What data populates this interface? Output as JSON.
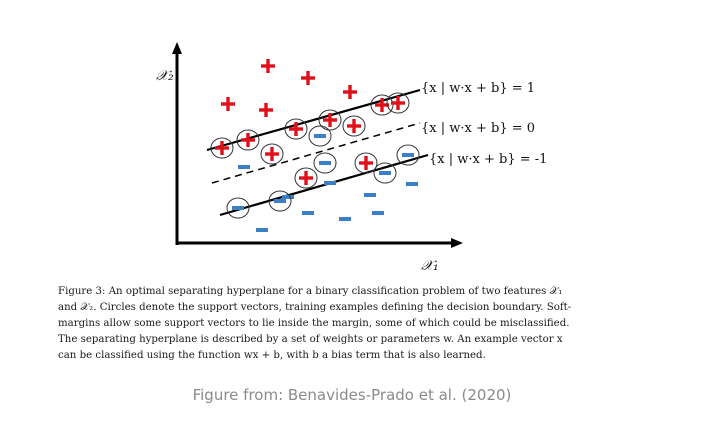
{
  "diagram": {
    "axis_x_label": "𝒳₁",
    "axis_y_label": "𝒳₂",
    "line_upper_label": "{x | w·x + b} = 1",
    "line_middle_label": "{x | w·x + b} = 0",
    "line_lower_label": "{x | w·x + b} = -1",
    "plus_color": "#e0101a",
    "minus_color": "#3b7fc9",
    "line_color": "#000000"
  },
  "caption": {
    "line1": "Figure 3: An optimal separating hyperplane for a binary classification problem of two features 𝒳₁",
    "line2": "and 𝒳₂. Circles denote the support vectors, training examples defining the decision boundary. Soft-",
    "line3": "margins allow some support vectors to lie inside the margin, some of which could be misclassified.",
    "line4": "The separating hyperplane is described by a set of weights or parameters w. An example vector x",
    "line5": "can be classified using the function wx + b, with b a bias term that is also learned."
  },
  "source": "Figure from: Benavides-Prado et al. (2020)"
}
